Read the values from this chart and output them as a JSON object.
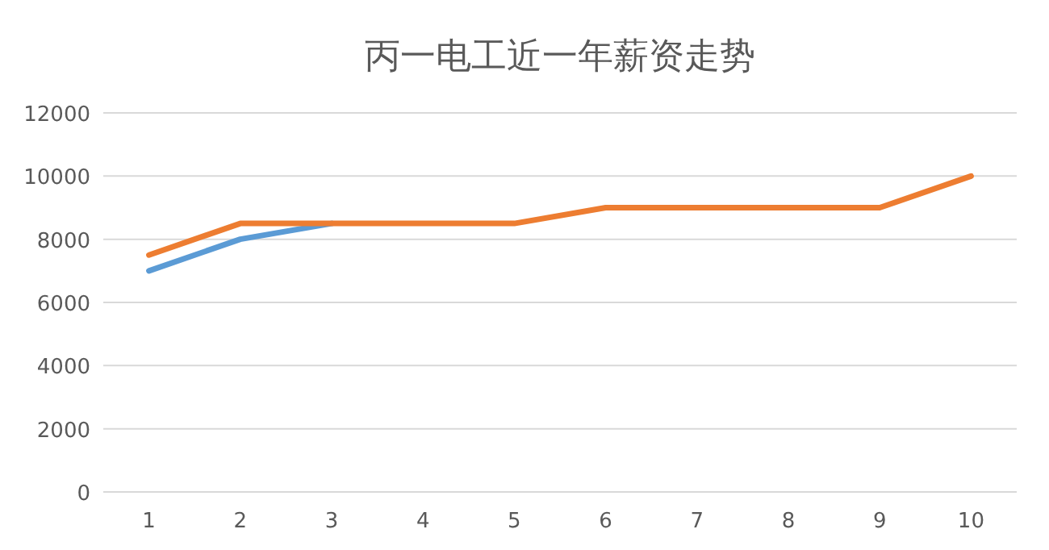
{
  "chart_data": {
    "type": "line",
    "title": "丙一电工近一年薪资走势",
    "categories": [
      "1",
      "2",
      "3",
      "4",
      "5",
      "6",
      "7",
      "8",
      "9",
      "10"
    ],
    "series": [
      {
        "color": "#5b9bd5",
        "values": [
          7000,
          8000,
          8500,
          null,
          null,
          null,
          null,
          null,
          null,
          null
        ]
      },
      {
        "color": "#ed7d31",
        "values": [
          7500,
          8500,
          8500,
          8500,
          8500,
          9000,
          9000,
          9000,
          9000,
          10000
        ]
      }
    ],
    "ylim": [
      0,
      12000
    ],
    "yticks": [
      0,
      2000,
      4000,
      6000,
      8000,
      10000,
      12000
    ],
    "grid": "y",
    "marker": "none",
    "line_style": "solid"
  }
}
